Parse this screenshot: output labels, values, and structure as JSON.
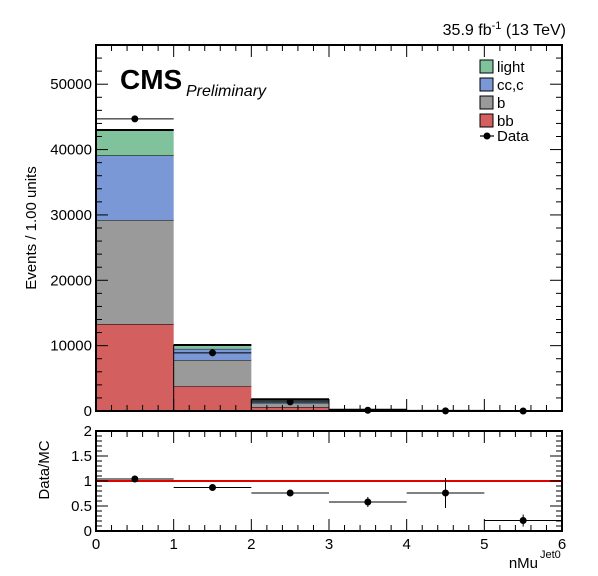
{
  "chart_data": [
    {
      "type": "bar",
      "stacked": true,
      "bin_edges": [
        0,
        1,
        2,
        3,
        4,
        5,
        6
      ],
      "x": [
        0.5,
        1.5,
        2.5,
        3.5,
        4.5,
        5.5
      ],
      "xlim": [
        0,
        6
      ],
      "ylim": [
        0,
        56000
      ],
      "xlabel": "nMu",
      "xlabel_sup": "Jet0",
      "ylabel": "Events / 1.00 units",
      "lumi_label": "35.9 fb",
      "lumi_sup": "-1",
      "lumi_suffix": " (13 TeV)",
      "cms_label": "CMS",
      "prelim_label": "Preliminary",
      "x_ticks": [
        0,
        1,
        2,
        3,
        4,
        5,
        6
      ],
      "y_ticks": [
        0,
        10000,
        20000,
        30000,
        40000,
        50000
      ],
      "legend_position": "top-right",
      "series": [
        {
          "name": "bb",
          "color": "#d45f5f",
          "values": [
            13300,
            3800,
            600,
            60,
            8,
            1
          ]
        },
        {
          "name": "b",
          "color": "#9a9a9a",
          "values": [
            15900,
            4000,
            650,
            60,
            8,
            1
          ]
        },
        {
          "name": "cc,c",
          "color": "#7b98d6",
          "values": [
            9900,
            1700,
            350,
            40,
            5,
            1
          ]
        },
        {
          "name": "light",
          "color": "#7fc29b",
          "values": [
            3900,
            600,
            200,
            30,
            4,
            1
          ]
        }
      ],
      "data": {
        "name": "Data",
        "values": [
          44700,
          8900,
          1400,
          110,
          20,
          1
        ],
        "errors": [
          210,
          95,
          37,
          10,
          5,
          1
        ]
      }
    },
    {
      "type": "scatter",
      "ylabel": "Data/MC",
      "xlim": [
        0,
        6
      ],
      "ylim": [
        0,
        2
      ],
      "y_ticks": [
        0,
        0.5,
        1,
        1.5,
        2
      ],
      "reference_line": {
        "y": 1,
        "color": "#e00000"
      },
      "x": [
        0.5,
        1.5,
        2.5,
        3.5,
        4.5,
        5.5
      ],
      "values": [
        1.04,
        0.87,
        0.76,
        0.58,
        0.76,
        0.21
      ],
      "errors": [
        0.01,
        0.02,
        0.03,
        0.1,
        0.3,
        0.12
      ]
    }
  ]
}
